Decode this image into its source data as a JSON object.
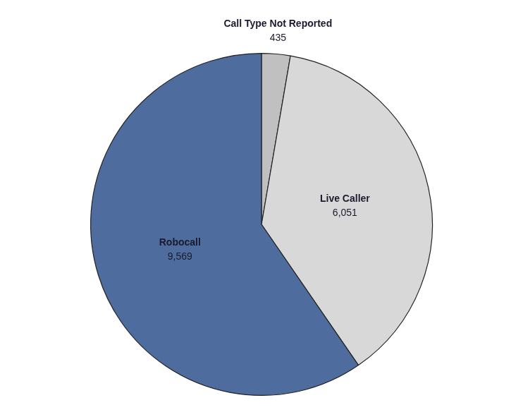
{
  "chart_data": {
    "type": "pie",
    "categories": [
      "Call Type Not Reported",
      "Live Caller",
      "Robocall"
    ],
    "values": [
      435,
      6051,
      9569
    ],
    "value_labels": [
      "435",
      "6,051",
      "9,569"
    ],
    "colors": [
      "#c0c0c0",
      "#d8d8d8",
      "#4e6d9e"
    ],
    "data_labels": true,
    "legend": false
  }
}
